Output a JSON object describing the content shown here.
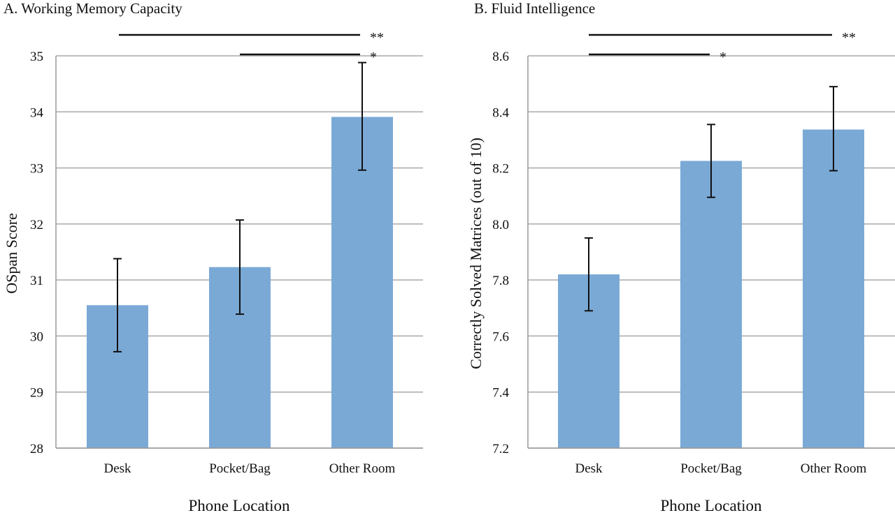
{
  "chart_data": [
    {
      "type": "bar",
      "title": "A. Working Memory Capacity",
      "xlabel": "Phone Location",
      "ylabel": "OSpan Score",
      "categories": [
        "Desk",
        "Pocket/Bag",
        "Other Room"
      ],
      "values": [
        30.55,
        31.23,
        33.91
      ],
      "error_low": [
        29.72,
        30.39,
        32.96
      ],
      "error_high": [
        31.38,
        32.07,
        34.88
      ],
      "ylim": [
        28,
        35
      ],
      "yticks": [
        28,
        29,
        30,
        31,
        32,
        33,
        34,
        35
      ],
      "grid": true,
      "bar_color": "#7aa9d6",
      "significance": [
        {
          "from": "Desk",
          "to": "Other Room",
          "label": "**"
        },
        {
          "from": "Pocket/Bag",
          "to": "Other Room",
          "label": "*"
        }
      ]
    },
    {
      "type": "bar",
      "title": "B. Fluid Intelligence",
      "xlabel": "Phone Location",
      "ylabel": "Correctly Solved Matrices (out of 10)",
      "categories": [
        "Desk",
        "Pocket/Bag",
        "Other Room"
      ],
      "values": [
        7.82,
        8.225,
        8.337
      ],
      "error_low": [
        7.69,
        8.095,
        8.19
      ],
      "error_high": [
        7.95,
        8.355,
        8.49
      ],
      "ylim": [
        7.2,
        8.6
      ],
      "yticks": [
        7.2,
        7.4,
        7.6,
        7.8,
        8.0,
        8.2,
        8.4,
        8.6
      ],
      "grid": true,
      "bar_color": "#7aa9d6",
      "significance": [
        {
          "from": "Desk",
          "to": "Other Room",
          "label": "**"
        },
        {
          "from": "Desk",
          "to": "Pocket/Bag",
          "label": "*"
        }
      ]
    }
  ]
}
